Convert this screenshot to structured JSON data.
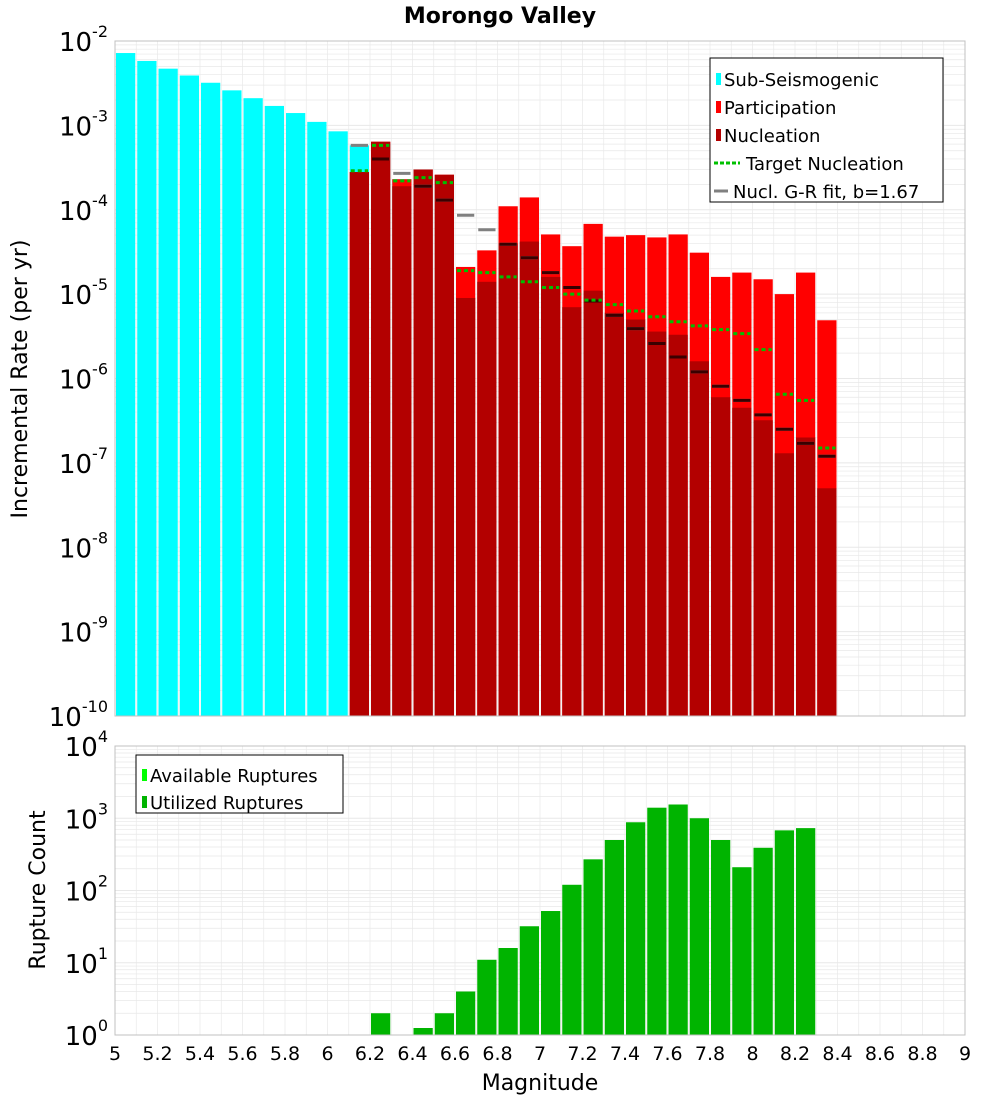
{
  "title": "Morongo Valley",
  "colors": {
    "sub_seismogenic": "#00ffff",
    "participation": "#ff0000",
    "nucleation": "#b30000",
    "target_nucleation": "#00c000",
    "gr_fit": "#808080",
    "available_ruptures": "#00ff00",
    "utilized_ruptures": "#00b400",
    "grid": "#e8e8e8",
    "plot_border": "#c0c0c0"
  },
  "chart_data": [
    {
      "type": "bar",
      "name": "rate-panel",
      "ylabel": "Incremental Rate (per yr)",
      "y_scale": "log",
      "ylim_exp": [
        -10,
        -2
      ],
      "xlim": [
        5,
        9
      ],
      "bin_width": 0.1,
      "legend_position": "top-right",
      "legend": [
        "Sub-Seismogenic",
        "Participation",
        "Nucleation",
        "Target Nucleation",
        "Nucl. G-R fit, b=1.67"
      ],
      "series": [
        {
          "name": "Sub-Seismogenic",
          "x": [
            5.05,
            5.15,
            5.25,
            5.35,
            5.45,
            5.55,
            5.65,
            5.75,
            5.85,
            5.95,
            6.05,
            6.15,
            6.25,
            6.35,
            6.45,
            6.55
          ],
          "values": [
            0.0072,
            0.0058,
            0.0047,
            0.0039,
            0.0032,
            0.0026,
            0.0021,
            0.0017,
            0.0014,
            0.0011,
            0.00085,
            0.00058,
            0.0006,
            0.00023,
            0.00024,
            0.00022
          ]
        },
        {
          "name": "Participation",
          "x": [
            6.15,
            6.25,
            6.35,
            6.45,
            6.55,
            6.65,
            6.75,
            6.85,
            6.95,
            7.05,
            7.15,
            7.25,
            7.35,
            7.45,
            7.55,
            7.65,
            7.75,
            7.85,
            7.95,
            8.05,
            8.15,
            8.25,
            8.35
          ],
          "values": [
            0.00028,
            0.00064,
            0.00023,
            0.0003,
            0.00026,
            2.1e-05,
            3.3e-05,
            0.00011,
            0.00014,
            5.1e-05,
            3.7e-05,
            6.8e-05,
            4.8e-05,
            5e-05,
            4.7e-05,
            5.1e-05,
            3.1e-05,
            1.6e-05,
            1.8e-05,
            1.5e-05,
            1e-05,
            1.8e-05,
            4.9e-06
          ]
        },
        {
          "name": "Nucleation",
          "x": [
            6.15,
            6.25,
            6.35,
            6.45,
            6.55,
            6.65,
            6.75,
            6.85,
            6.95,
            7.05,
            7.15,
            7.25,
            7.35,
            7.45,
            7.55,
            7.65,
            7.75,
            7.85,
            7.95,
            8.05,
            8.15,
            8.25,
            8.35
          ],
          "values": [
            0.00028,
            0.00064,
            0.00019,
            0.0003,
            0.00026,
            9e-06,
            1.4e-05,
            4e-05,
            4.2e-05,
            1.6e-05,
            7e-06,
            1.1e-05,
            6e-06,
            5e-06,
            3.6e-06,
            3.3e-06,
            1.6e-06,
            6e-07,
            4.5e-07,
            3.2e-07,
            1.3e-07,
            2e-07,
            5e-08
          ]
        },
        {
          "name": "Target Nucleation",
          "x": [
            6.15,
            6.25,
            6.35,
            6.45,
            6.55,
            6.65,
            6.75,
            6.85,
            6.95,
            7.05,
            7.15,
            7.25,
            7.35,
            7.45,
            7.55,
            7.65,
            7.75,
            7.85,
            7.95,
            8.05,
            8.15,
            8.25,
            8.35
          ],
          "values": [
            0.00029,
            0.00058,
            0.00022,
            0.00024,
            0.00021,
            1.9e-05,
            1.8e-05,
            1.6e-05,
            1.4e-05,
            1.2e-05,
            1e-05,
            8.5e-06,
            7.5e-06,
            6.3e-06,
            5.4e-06,
            4.7e-06,
            4.2e-06,
            3.8e-06,
            3.4e-06,
            2.2e-06,
            6.5e-07,
            5.5e-07,
            1.5e-07
          ]
        },
        {
          "name": "Nucl. G-R fit, b=1.67",
          "x": [
            6.15,
            6.25,
            6.35,
            6.45,
            6.55,
            6.65,
            6.75,
            6.85,
            6.95,
            7.05,
            7.15,
            7.25,
            7.35,
            7.45,
            7.55,
            7.65,
            7.75,
            7.85,
            7.95,
            8.05,
            8.15,
            8.25,
            8.35
          ],
          "values": [
            0.00058,
            0.0004,
            0.00027,
            0.00019,
            0.00013,
            8.6e-05,
            5.8e-05,
            3.9e-05,
            2.7e-05,
            1.8e-05,
            1.2e-05,
            8.3e-06,
            5.6e-06,
            3.9e-06,
            2.6e-06,
            1.8e-06,
            1.2e-06,
            8.1e-07,
            5.5e-07,
            3.7e-07,
            2.5e-07,
            1.7e-07,
            1.2e-07
          ]
        }
      ]
    },
    {
      "type": "bar",
      "name": "count-panel",
      "xlabel": "Magnitude",
      "ylabel": "Rupture Count",
      "y_scale": "log",
      "ylim_exp": [
        0,
        4
      ],
      "xlim": [
        5,
        9
      ],
      "bin_width": 0.1,
      "legend_position": "top-left",
      "legend": [
        "Available Ruptures",
        "Utilized Ruptures"
      ],
      "x_ticks": [
        "5",
        "5.2",
        "5.4",
        "5.6",
        "5.8",
        "6",
        "6.2",
        "6.4",
        "6.6",
        "6.8",
        "7",
        "7.2",
        "7.4",
        "7.6",
        "7.8",
        "8",
        "8.2",
        "8.4",
        "8.6",
        "8.8",
        "9"
      ],
      "series": [
        {
          "name": "Utilized Ruptures",
          "x": [
            6.25,
            6.45,
            6.55,
            6.65,
            6.75,
            6.85,
            6.95,
            7.05,
            7.15,
            7.25,
            7.35,
            7.45,
            7.55,
            7.65,
            7.75,
            7.85,
            7.95,
            8.05,
            8.15,
            8.25
          ],
          "values": [
            2,
            1,
            2,
            4,
            11,
            16,
            32,
            52,
            120,
            270,
            500,
            880,
            1400,
            1550,
            1000,
            500,
            210,
            390,
            680,
            730
          ]
        }
      ]
    }
  ]
}
